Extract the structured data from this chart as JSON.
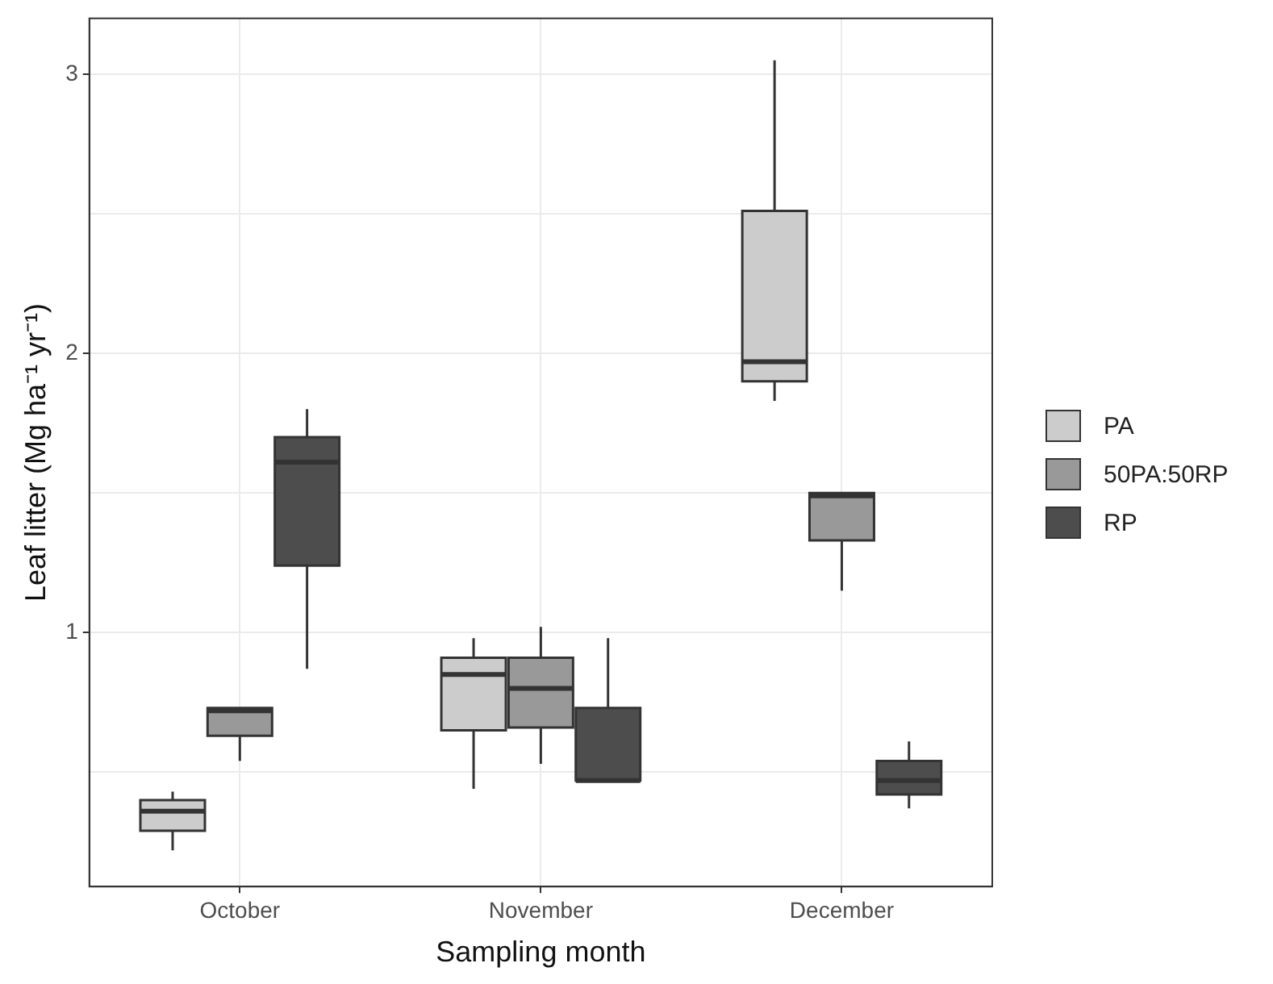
{
  "chart_data": {
    "type": "box",
    "xlabel": "Sampling month",
    "ylabel": "Leaf litter (Mg ha⁻¹ yr⁻¹)",
    "categories": [
      "October",
      "November",
      "December"
    ],
    "ylim": [
      0.09,
      3.2
    ],
    "yticks": [
      {
        "value": 0.5,
        "label": null
      },
      1,
      {
        "value": 1.5,
        "label": null
      },
      2,
      {
        "value": 2.5,
        "label": null
      },
      3
    ],
    "grid": true,
    "legend": "right",
    "series": [
      {
        "name": "PA",
        "color": "#cccccc",
        "boxes": [
          {
            "low": 0.22,
            "q1": 0.29,
            "median": 0.36,
            "q3": 0.4,
            "high": 0.43
          },
          {
            "low": 0.44,
            "q1": 0.65,
            "median": 0.85,
            "q3": 0.91,
            "high": 0.98
          },
          {
            "low": 1.83,
            "q1": 1.9,
            "median": 1.97,
            "q3": 2.51,
            "high": 3.05
          }
        ]
      },
      {
        "name": "50PA:50RP",
        "color": "#999999",
        "boxes": [
          {
            "low": 0.54,
            "q1": 0.63,
            "median": 0.72,
            "q3": 0.73,
            "high": 0.73
          },
          {
            "low": 0.53,
            "q1": 0.66,
            "median": 0.8,
            "q3": 0.91,
            "high": 1.02
          },
          {
            "low": 1.15,
            "q1": 1.33,
            "median": 1.49,
            "q3": 1.5,
            "high": 1.5
          }
        ]
      },
      {
        "name": "RP",
        "color": "#4d4d4d",
        "boxes": [
          {
            "low": 0.87,
            "q1": 1.24,
            "median": 1.61,
            "q3": 1.7,
            "high": 1.8
          },
          {
            "low": 0.47,
            "q1": 0.47,
            "median": 0.47,
            "q3": 0.73,
            "high": 0.98
          },
          {
            "low": 0.37,
            "q1": 0.42,
            "median": 0.47,
            "q3": 0.54,
            "high": 0.61
          }
        ]
      }
    ]
  }
}
